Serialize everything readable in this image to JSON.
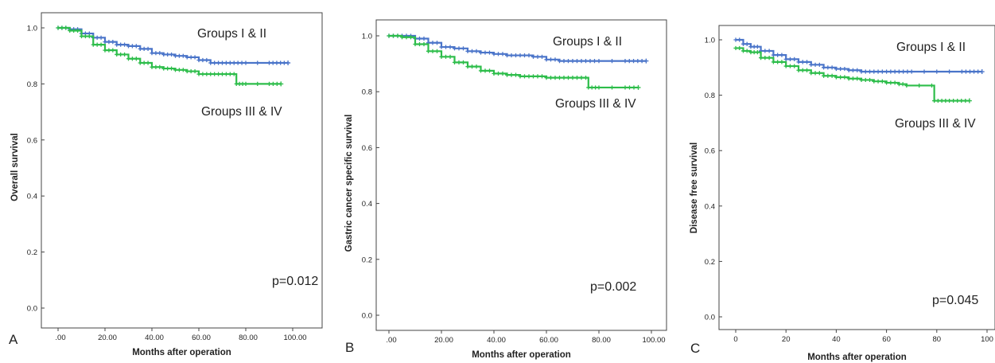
{
  "colors": {
    "blue": "#4a74c9",
    "green": "#2dbd4a",
    "frame": "#444444",
    "text": "#222222"
  },
  "chart_data": [
    {
      "type": "line",
      "panel": "A",
      "xlabel": "Months after operation",
      "ylabel": "Overall survival",
      "xlim": [
        0,
        100
      ],
      "ylim": [
        0,
        1.0
      ],
      "xticks": [
        ".00",
        "20.00",
        "40.00",
        "60.00",
        "80.00",
        "100.00"
      ],
      "yticks": [
        "0.0",
        "0.2",
        "0.4",
        "0.6",
        "0.8",
        "1.0"
      ],
      "annotation": "p=0.012",
      "series": [
        {
          "name": "Groups I & II",
          "color": "blue",
          "x": [
            0,
            5,
            10,
            15,
            20,
            25,
            30,
            35,
            40,
            45,
            50,
            55,
            60,
            65,
            70,
            75,
            80,
            90,
            98
          ],
          "y": [
            1.0,
            0.995,
            0.98,
            0.965,
            0.95,
            0.94,
            0.935,
            0.925,
            0.91,
            0.905,
            0.9,
            0.895,
            0.885,
            0.875,
            0.875,
            0.875,
            0.875,
            0.875,
            0.875
          ]
        },
        {
          "name": "Groups III & IV",
          "color": "green",
          "x": [
            0,
            5,
            10,
            15,
            20,
            25,
            30,
            35,
            40,
            45,
            50,
            55,
            60,
            65,
            70,
            75,
            76,
            80,
            90,
            95
          ],
          "y": [
            1.0,
            0.99,
            0.97,
            0.94,
            0.92,
            0.905,
            0.89,
            0.875,
            0.86,
            0.855,
            0.85,
            0.845,
            0.835,
            0.835,
            0.835,
            0.835,
            0.8,
            0.8,
            0.8,
            0.8
          ]
        }
      ]
    },
    {
      "type": "line",
      "panel": "B",
      "xlabel": "Months after operation",
      "ylabel": "Gastric cancer specific survival",
      "xlim": [
        0,
        100
      ],
      "ylim": [
        0,
        1.0
      ],
      "xticks": [
        ".00",
        "20.00",
        "40.00",
        "60.00",
        "80.00",
        "100.00"
      ],
      "yticks": [
        "0.0",
        "0.2",
        "0.4",
        "0.6",
        "0.8",
        "1.0"
      ],
      "annotation": "p=0.002",
      "series": [
        {
          "name": "Groups I & II",
          "color": "blue",
          "x": [
            0,
            5,
            10,
            15,
            20,
            25,
            30,
            35,
            40,
            45,
            50,
            55,
            60,
            65,
            70,
            75,
            80,
            90,
            98
          ],
          "y": [
            1.0,
            1.0,
            0.99,
            0.975,
            0.96,
            0.955,
            0.945,
            0.94,
            0.935,
            0.93,
            0.93,
            0.925,
            0.915,
            0.91,
            0.91,
            0.91,
            0.91,
            0.91,
            0.91
          ]
        },
        {
          "name": "Groups III & IV",
          "color": "green",
          "x": [
            0,
            5,
            10,
            15,
            20,
            25,
            30,
            35,
            40,
            45,
            50,
            55,
            60,
            65,
            70,
            75,
            76,
            80,
            90,
            95
          ],
          "y": [
            1.0,
            0.995,
            0.97,
            0.945,
            0.925,
            0.905,
            0.89,
            0.875,
            0.865,
            0.86,
            0.855,
            0.855,
            0.85,
            0.85,
            0.85,
            0.85,
            0.815,
            0.815,
            0.815,
            0.815
          ]
        }
      ]
    },
    {
      "type": "line",
      "panel": "C",
      "xlabel": "Months after operation",
      "ylabel": "Disease free survival",
      "xlim": [
        0,
        100
      ],
      "ylim": [
        0,
        1.0
      ],
      "xticks": [
        "0",
        "20",
        "40",
        "60",
        "80",
        "100"
      ],
      "yticks": [
        "0.0",
        "0.2",
        "0.4",
        "0.6",
        "0.8",
        "1.0"
      ],
      "annotation": "p=0.045",
      "series": [
        {
          "name": "Groups I & II",
          "color": "blue",
          "x": [
            0,
            3,
            6,
            10,
            15,
            20,
            25,
            30,
            35,
            40,
            45,
            50,
            55,
            60,
            65,
            70,
            80,
            90,
            98
          ],
          "y": [
            1.0,
            0.985,
            0.975,
            0.96,
            0.945,
            0.93,
            0.92,
            0.91,
            0.9,
            0.895,
            0.89,
            0.885,
            0.885,
            0.885,
            0.885,
            0.885,
            0.885,
            0.885,
            0.885
          ]
        },
        {
          "name": "Groups III & IV",
          "color": "green",
          "x": [
            0,
            3,
            6,
            10,
            15,
            20,
            25,
            30,
            35,
            40,
            45,
            50,
            55,
            60,
            65,
            68,
            78,
            79,
            85,
            93
          ],
          "y": [
            0.97,
            0.96,
            0.955,
            0.935,
            0.92,
            0.905,
            0.89,
            0.88,
            0.87,
            0.865,
            0.86,
            0.855,
            0.85,
            0.845,
            0.84,
            0.835,
            0.835,
            0.78,
            0.78,
            0.78
          ]
        }
      ]
    }
  ],
  "panels": [
    {
      "letter": "A",
      "label_top": "Groups I & II",
      "label_bottom": "Groups III & IV"
    },
    {
      "letter": "B",
      "label_top": "Groups I & II",
      "label_bottom": "Groups III & IV"
    },
    {
      "letter": "C",
      "label_top": "Groups I & II",
      "label_bottom": "Groups III & IV"
    }
  ]
}
